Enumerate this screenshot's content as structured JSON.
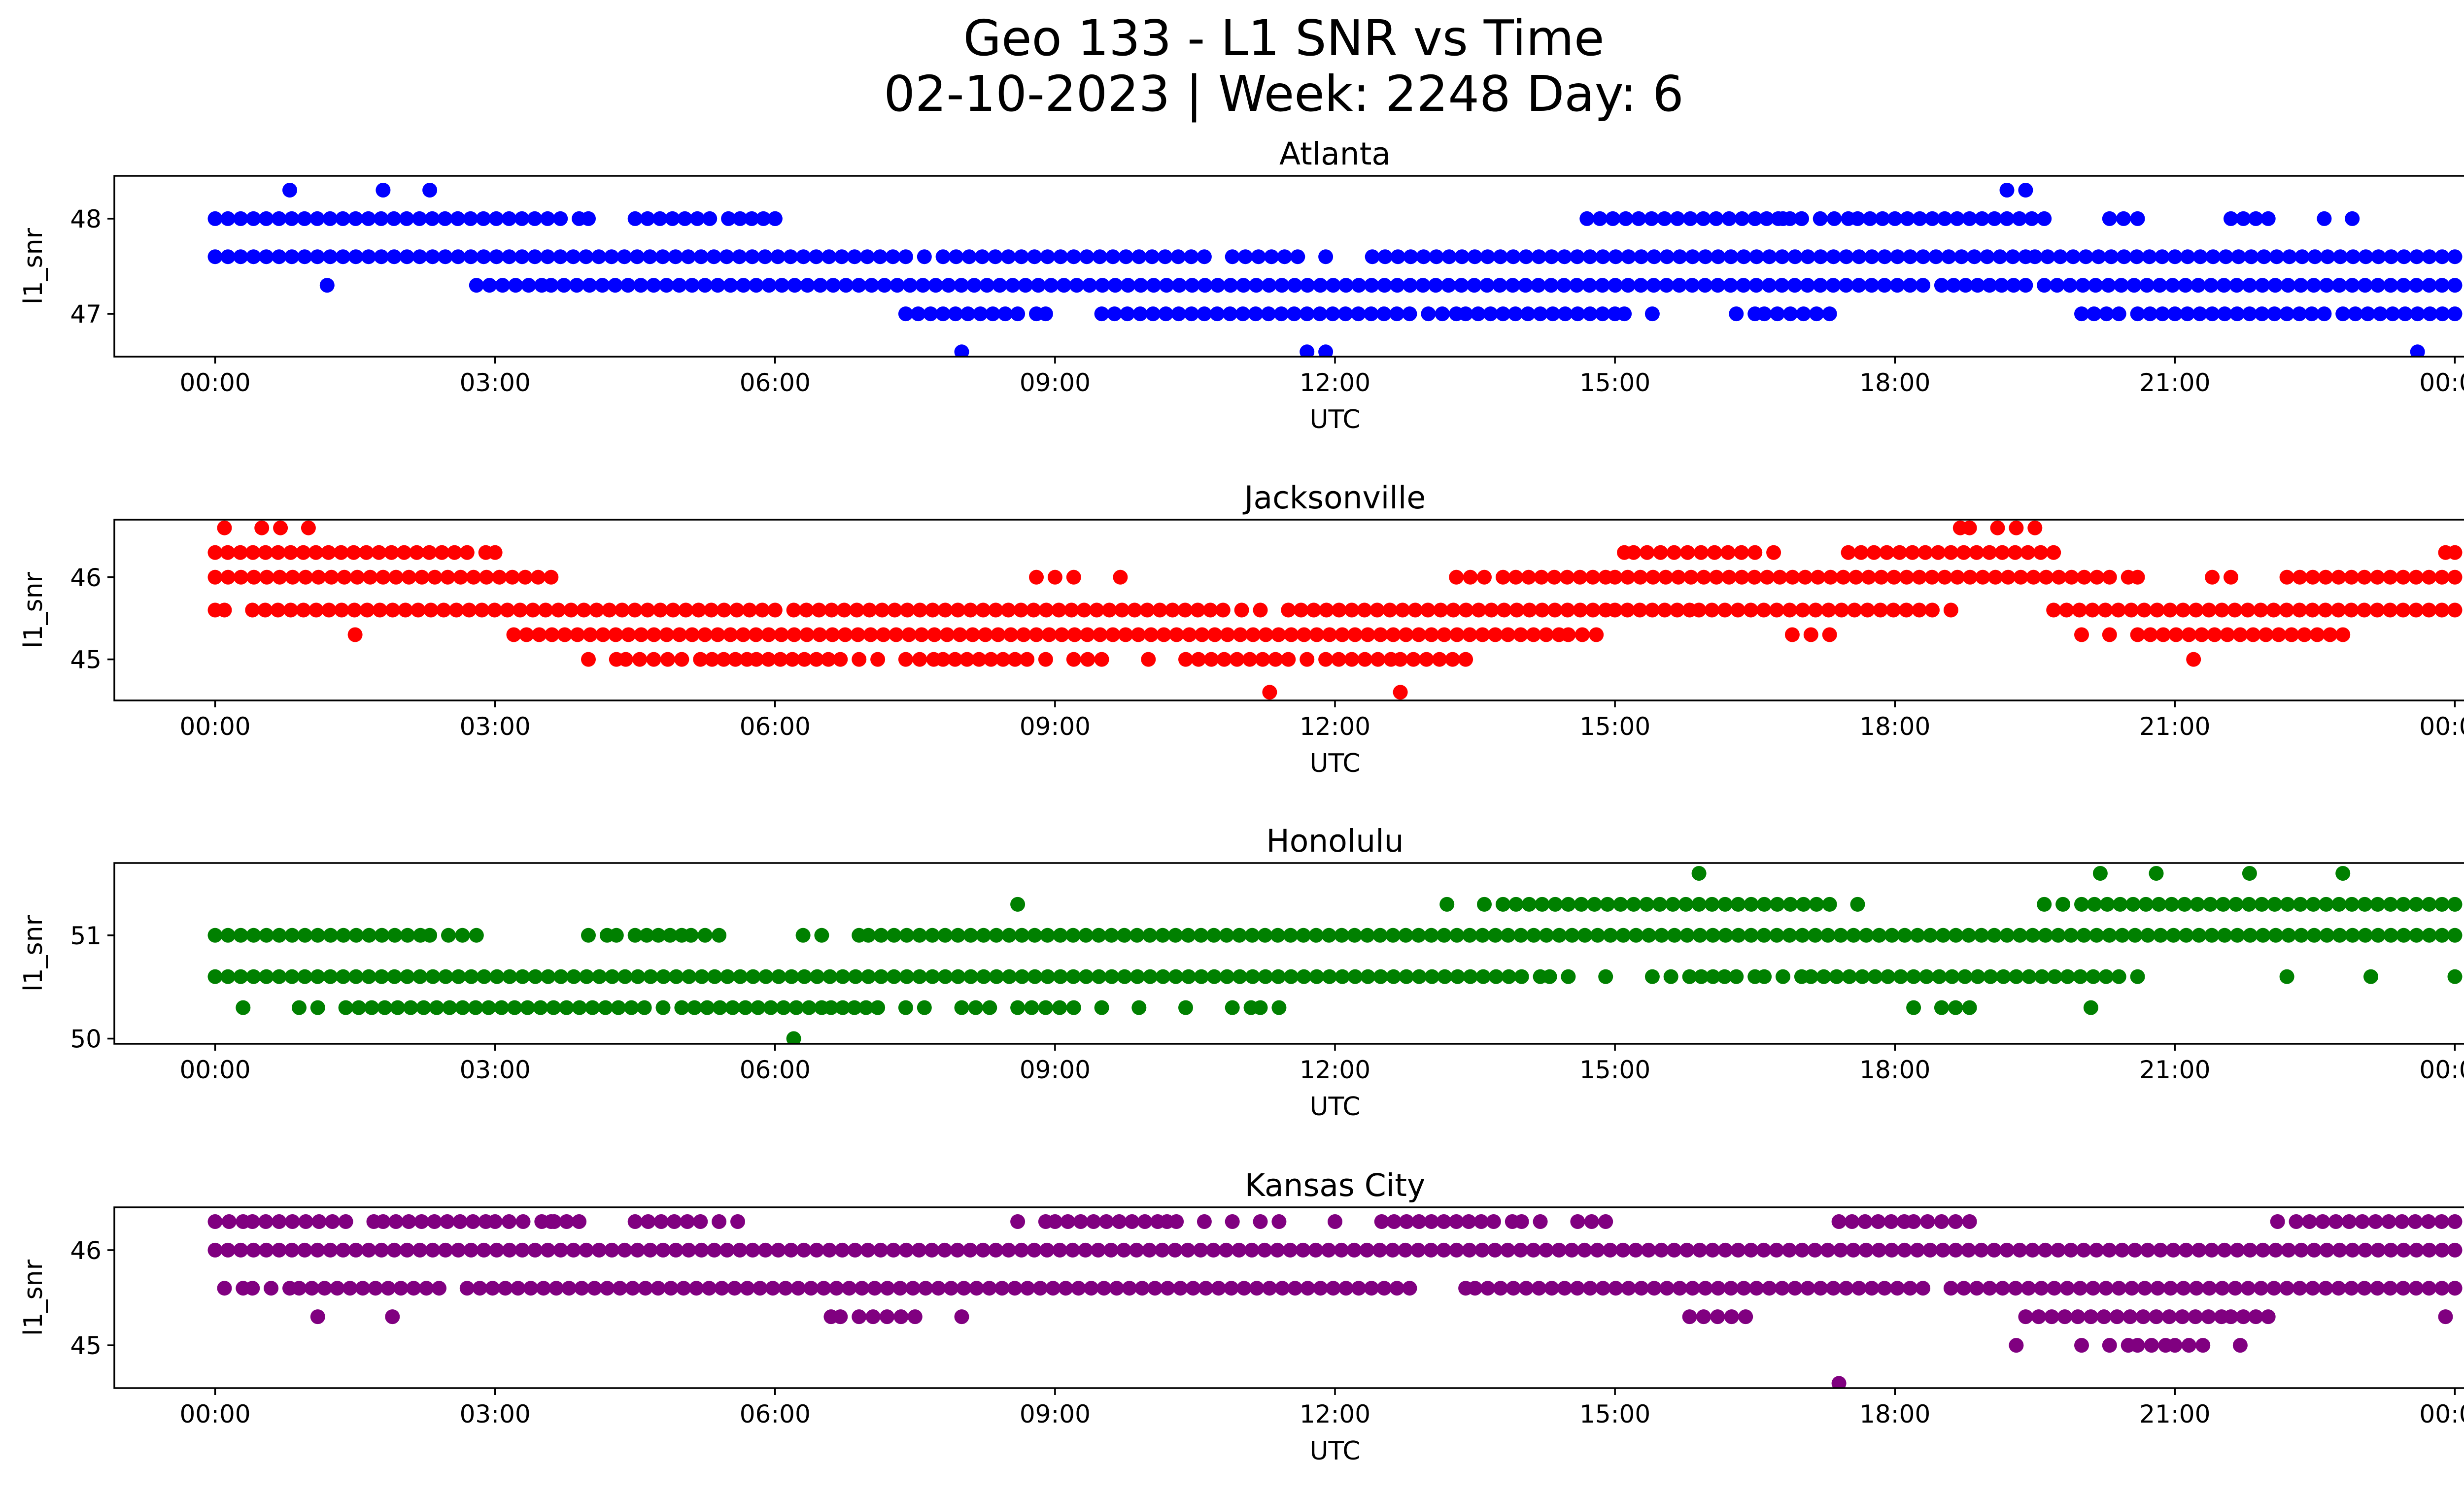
{
  "figure": {
    "title_line1": "Geo 133 - L1 SNR vs Time",
    "title_line2": "02-10-2023 | Week: 2248 Day: 6"
  },
  "chart_data": [
    {
      "type": "scatter",
      "title": "Atlanta",
      "xlabel": "UTC",
      "ylabel": "l1_snr",
      "color": "#0000ff",
      "xlim": [
        "00:00",
        "24:00"
      ],
      "ylim": [
        46.55,
        48.45
      ],
      "x_ticks": [
        "00:00",
        "03:00",
        "06:00",
        "09:00",
        "12:00",
        "15:00",
        "18:00",
        "21:00",
        "00:00"
      ],
      "y_ticks": [
        47,
        48
      ],
      "levels": [
        {
          "y": 48.0,
          "segments": [
            [
              0.0,
              2.6
            ],
            [
              2.6,
              3.7
            ],
            [
              3.9,
              4.0
            ],
            [
              4.5,
              5.3
            ],
            [
              5.5,
              6.0
            ],
            [
              14.7,
              16.5
            ],
            [
              16.5,
              17.0
            ],
            [
              17.2,
              17.5
            ],
            [
              17.6,
              19.6
            ],
            [
              20.3,
              20.6
            ],
            [
              21.6,
              22.0
            ]
          ],
          "points": [
            6.0,
            16.8,
            17.0,
            22.6,
            22.9
          ]
        },
        {
          "y": 47.6,
          "segments": [
            [
              0.0,
              7.4
            ],
            [
              7.8,
              10.6
            ],
            [
              10.9,
              11.6
            ],
            [
              12.4,
              19.4
            ],
            [
              19.5,
              24.0
            ]
          ],
          "points": [
            7.6,
            11.9
          ]
        },
        {
          "y": 47.3,
          "segments": [
            [
              2.8,
              3.5
            ],
            [
              3.6,
              18.3
            ],
            [
              18.5,
              19.4
            ],
            [
              19.6,
              24.0
            ]
          ],
          "points": [
            1.2
          ]
        },
        {
          "y": 47.0,
          "segments": [
            [
              7.4,
              8.6
            ],
            [
              8.8,
              8.9
            ],
            [
              9.5,
              12.8
            ],
            [
              13.0,
              13.3
            ],
            [
              13.4,
              15.0
            ],
            [
              16.6,
              17.3
            ],
            [
              20.0,
              20.4
            ],
            [
              20.6,
              22.6
            ],
            [
              22.8,
              24.0
            ]
          ],
          "points": [
            15.1,
            15.4,
            16.3,
            16.5
          ]
        },
        {
          "y": 48.3,
          "segments": [
            [
              19.2,
              19.4
            ]
          ],
          "points": [
            0.8,
            1.8,
            2.3
          ]
        },
        {
          "y": 46.6,
          "segments": [],
          "points": [
            8.0,
            11.7,
            11.9,
            23.6
          ]
        }
      ]
    },
    {
      "type": "scatter",
      "title": "Jacksonville",
      "xlabel": "UTC",
      "ylabel": "l1_snr",
      "color": "#ff0000",
      "xlim": [
        "00:00",
        "24:00"
      ],
      "ylim": [
        44.5,
        46.7
      ],
      "x_ticks": [
        "00:00",
        "03:00",
        "06:00",
        "09:00",
        "12:00",
        "15:00",
        "18:00",
        "21:00",
        "00:00"
      ],
      "y_ticks": [
        45,
        46
      ],
      "levels": [
        {
          "y": 46.6,
          "segments": [
            [
              18.7,
              18.8
            ],
            [
              19.1,
              19.3
            ]
          ],
          "points": [
            0.1,
            0.5,
            0.7,
            1.0,
            19.5
          ]
        },
        {
          "y": 46.3,
          "segments": [
            [
              0.0,
              2.7
            ],
            [
              2.9,
              3.0
            ],
            [
              15.2,
              16.5
            ],
            [
              17.5,
              19.7
            ],
            [
              23.9,
              24.0
            ]
          ],
          "points": [
            15.1,
            16.7
          ]
        },
        {
          "y": 46.0,
          "segments": [
            [
              0.0,
              3.6
            ],
            [
              13.3,
              13.6
            ],
            [
              13.8,
              14.9
            ],
            [
              15.0,
              20.3
            ],
            [
              20.5,
              20.6
            ],
            [
              21.4,
              21.6
            ],
            [
              22.2,
              24.0
            ]
          ],
          "points": [
            8.8,
            9.0,
            9.2,
            9.7
          ]
        },
        {
          "y": 45.6,
          "segments": [
            [
              0.0,
              0.1
            ],
            [
              0.4,
              6.0
            ],
            [
              6.2,
              10.8
            ],
            [
              11.0,
              11.2
            ],
            [
              11.5,
              14.9
            ],
            [
              15.0,
              15.8
            ],
            [
              15.9,
              18.4
            ],
            [
              19.7,
              24.0
            ]
          ],
          "points": [
            18.6
          ]
        },
        {
          "y": 45.3,
          "segments": [
            [
              3.2,
              14.4
            ],
            [
              14.5,
              14.8
            ],
            [
              16.9,
              17.1
            ],
            [
              20.6,
              22.8
            ]
          ],
          "points": [
            1.5,
            17.3,
            20.0,
            20.3
          ]
        },
        {
          "y": 45.0,
          "segments": [
            [
              4.4,
              5.0
            ],
            [
              5.2,
              5.7
            ],
            [
              5.8,
              6.7
            ],
            [
              6.9,
              7.1
            ],
            [
              7.4,
              7.7
            ],
            [
              7.8,
              8.7
            ],
            [
              9.2,
              9.5
            ],
            [
              10.4,
              11.5
            ],
            [
              11.9,
              12.6
            ],
            [
              12.7,
              13.4
            ]
          ],
          "points": [
            4.0,
            4.3,
            8.9,
            10.0,
            11.7,
            21.2
          ]
        },
        {
          "y": 44.6,
          "segments": [],
          "points": [
            11.3,
            12.7
          ]
        }
      ]
    },
    {
      "type": "scatter",
      "title": "Honolulu",
      "xlabel": "UTC",
      "ylabel": "l1_snr",
      "color": "#008000",
      "xlim": [
        "00:00",
        "24:00"
      ],
      "ylim": [
        49.95,
        51.7
      ],
      "x_ticks": [
        "00:00",
        "03:00",
        "06:00",
        "09:00",
        "12:00",
        "15:00",
        "18:00",
        "21:00",
        "00:00"
      ],
      "y_ticks": [
        50,
        51
      ],
      "levels": [
        {
          "y": 51.6,
          "segments": [],
          "points": [
            15.9,
            20.2,
            20.8,
            21.8,
            22.8
          ]
        },
        {
          "y": 51.3,
          "segments": [
            [
              13.8,
              17.3
            ],
            [
              20.0,
              24.0
            ]
          ],
          "points": [
            8.6,
            13.2,
            13.6,
            17.6,
            19.6,
            19.8
          ]
        },
        {
          "y": 51.0,
          "segments": [
            [
              0.0,
              2.2
            ],
            [
              2.5,
              2.8
            ],
            [
              4.2,
              4.3
            ],
            [
              4.5,
              5.0
            ],
            [
              5.1,
              5.4
            ],
            [
              7.0,
              24.0
            ]
          ],
          "points": [
            2.3,
            4.0,
            6.3,
            6.5,
            6.9
          ]
        },
        {
          "y": 50.6,
          "segments": [
            [
              0.0,
              14.0
            ],
            [
              14.2,
              14.3
            ],
            [
              15.4,
              15.6
            ],
            [
              15.8,
              16.3
            ],
            [
              16.5,
              16.6
            ],
            [
              16.8,
              17.0
            ],
            [
              17.1,
              20.4
            ]
          ],
          "points": [
            14.5,
            14.9,
            20.6,
            22.2,
            23.1,
            24.0
          ]
        },
        {
          "y": 50.3,
          "segments": [
            [
              0.9,
              1.1
            ],
            [
              1.4,
              4.6
            ],
            [
              5.0,
              6.5
            ],
            [
              6.6,
              7.1
            ],
            [
              7.4,
              7.6
            ],
            [
              8.0,
              8.3
            ],
            [
              8.6,
              9.2
            ],
            [
              11.1,
              11.2
            ],
            [
              18.5,
              18.8
            ]
          ],
          "points": [
            0.3,
            4.8,
            9.5,
            9.9,
            10.4,
            10.9,
            11.4,
            18.2,
            20.1
          ]
        },
        {
          "y": 50.0,
          "segments": [],
          "points": [
            6.2
          ]
        }
      ]
    },
    {
      "type": "scatter",
      "title": "Kansas City",
      "xlabel": "UTC",
      "ylabel": "l1_snr",
      "color": "#800080",
      "xlim": [
        "00:00",
        "24:00"
      ],
      "ylim": [
        44.55,
        46.45
      ],
      "x_ticks": [
        "00:00",
        "03:00",
        "06:00",
        "09:00",
        "12:00",
        "15:00",
        "18:00",
        "21:00",
        "00:00"
      ],
      "y_ticks": [
        45,
        46
      ],
      "levels": [
        {
          "y": 46.3,
          "segments": [
            [
              0.0,
              0.3
            ],
            [
              0.4,
              1.4
            ],
            [
              1.8,
              2.9
            ],
            [
              3.0,
              3.3
            ],
            [
              3.5,
              3.9
            ],
            [
              4.5,
              5.2
            ],
            [
              9.0,
              10.1
            ],
            [
              10.2,
              10.3
            ],
            [
              12.5,
              13.7
            ],
            [
              13.9,
              14.0
            ],
            [
              14.6,
              14.9
            ],
            [
              17.4,
              18.1
            ],
            [
              18.2,
              18.8
            ],
            [
              22.3,
              24.0
            ]
          ],
          "points": [
            1.7,
            3.6,
            5.4,
            5.6,
            8.6,
            8.9,
            10.6,
            10.9,
            11.2,
            11.4,
            12.0,
            14.2,
            22.1
          ]
        },
        {
          "y": 46.0,
          "segments": [
            [
              0.0,
              24.0
            ]
          ],
          "points": []
        },
        {
          "y": 45.6,
          "segments": [
            [
              0.1,
              0.3
            ],
            [
              0.6,
              0.8
            ],
            [
              0.9,
              2.4
            ],
            [
              2.7,
              12.8
            ],
            [
              13.5,
              18.3
            ],
            [
              18.6,
              24.0
            ]
          ],
          "points": [
            0.4,
            13.4,
            24.0
          ]
        },
        {
          "y": 45.3,
          "segments": [
            [
              6.6,
              6.7
            ],
            [
              6.9,
              7.5
            ],
            [
              15.8,
              16.4
            ],
            [
              19.4,
              21.5
            ],
            [
              21.6,
              22.0
            ]
          ],
          "points": [
            1.1,
            1.9,
            8.0,
            23.9
          ]
        },
        {
          "y": 45.0,
          "segments": [
            [
              20.3,
              20.5
            ],
            [
              20.6,
              20.9
            ],
            [
              21.0,
              21.3
            ]
          ],
          "points": [
            19.3,
            20.0,
            21.7
          ]
        },
        {
          "y": 44.6,
          "segments": [],
          "points": [
            17.4
          ]
        }
      ]
    }
  ]
}
